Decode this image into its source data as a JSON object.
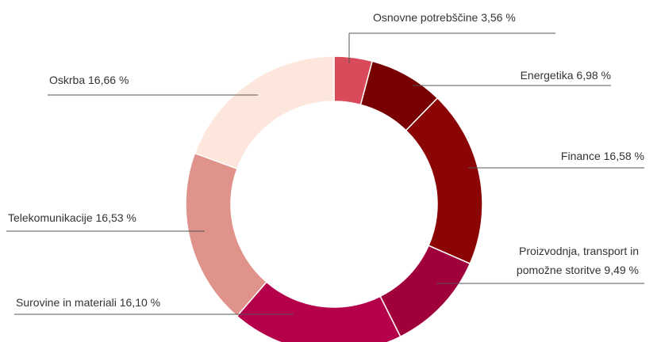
{
  "chart_data": {
    "type": "donut",
    "categories": [
      "Osnovne potrebščine",
      "Energetika",
      "Finance",
      "Proizvodnja, transport in pomožne storitve",
      "Surovine in materiali",
      "Telekomunikacije",
      "Oskrba"
    ],
    "values": [
      3.56,
      6.98,
      16.58,
      9.49,
      16.1,
      16.53,
      16.66
    ],
    "value_labels": [
      "3,56 %",
      "6,98 %",
      "16,58 %",
      "9,49 %",
      "16,10 %",
      "16,53 %",
      "16,66 %"
    ],
    "colors": [
      "#d94a5a",
      "#780000",
      "#8c0505",
      "#a0003c",
      "#b5004b",
      "#e0938a",
      "#fde6dc"
    ]
  }
}
